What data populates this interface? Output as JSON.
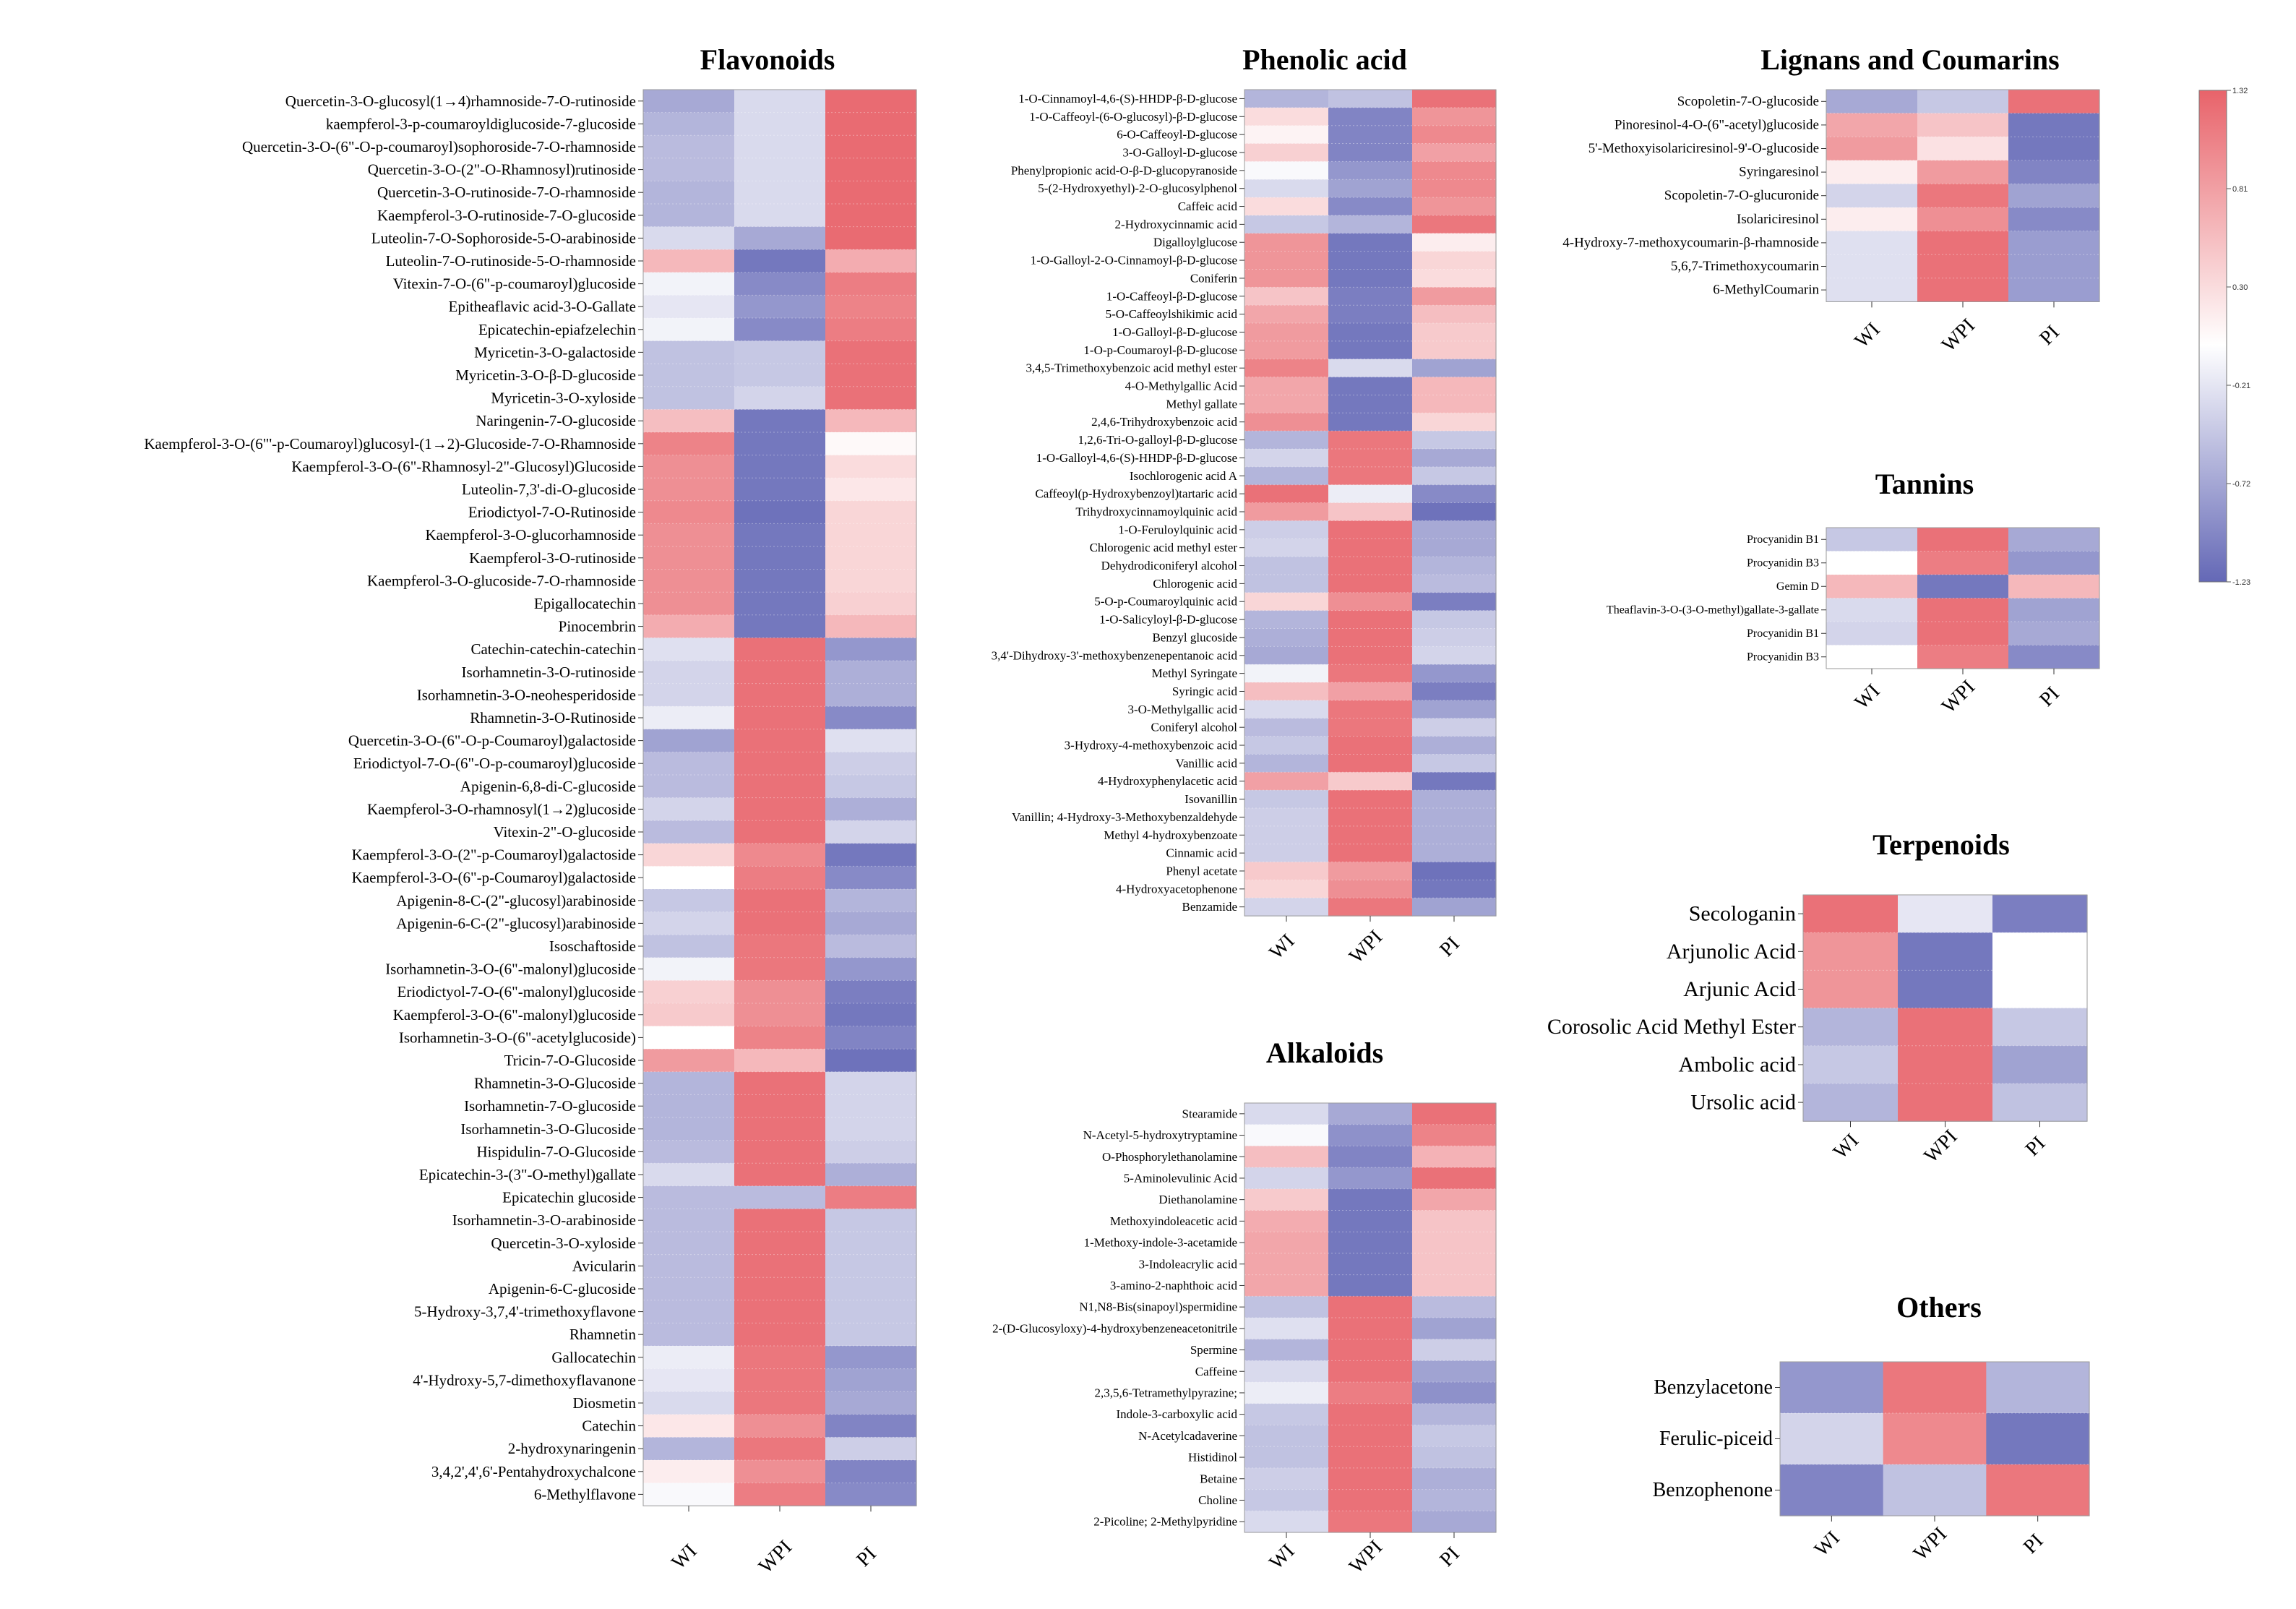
{
  "chart_data": [
    {
      "id": "flavonoids",
      "type": "heatmap",
      "title": "Flavonoids",
      "columns": [
        "WI",
        "WPI",
        "PI"
      ],
      "rows": [
        "Quercetin-3-O-glucosyl(1→4)rhamnoside-7-O-rutinoside",
        "kaempferol-3-p-coumaroyldiglucoside-7-glucoside",
        "Quercetin-3-O-(6\"-O-p-coumaroyl)sophoroside-7-O-rhamnoside",
        "Quercetin-3-O-(2\"-O-Rhamnosyl)rutinoside",
        "Quercetin-3-O-rutinoside-7-O-rhamnoside",
        "Kaempferol-3-O-rutinoside-7-O-glucoside",
        "Luteolin-7-O-Sophoroside-5-O-arabinoside",
        "Luteolin-7-O-rutinoside-5-O-rhamnoside",
        "Vitexin-7-O-(6\"-p-coumaroyl)glucoside",
        "Epitheaflavic acid-3-O-Gallate",
        "Epicatechin-epiafzelechin",
        "Myricetin-3-O-galactoside",
        "Myricetin-3-O-β-D-glucoside",
        "Myricetin-3-O-xyloside",
        "Naringenin-7-O-glucoside",
        "Kaempferol-3-O-(6\"'-p-Coumaroyl)glucosyl-(1→2)-Glucoside-7-O-Rhamnoside",
        "Kaempferol-3-O-(6\"-Rhamnosyl-2\"-Glucosyl)Glucoside",
        "Luteolin-7,3'-di-O-glucoside",
        "Eriodictyol-7-O-Rutinoside",
        "Kaempferol-3-O-glucorhamnoside",
        "Kaempferol-3-O-rutinoside",
        "Kaempferol-3-O-glucoside-7-O-rhamnoside",
        "Epigallocatechin",
        "Pinocembrin",
        "Catechin-catechin-catechin",
        "Isorhamnetin-3-O-rutinoside",
        "Isorhamnetin-3-O-neohesperidoside",
        "Rhamnetin-3-O-Rutinoside",
        "Quercetin-3-O-(6\"-O-p-Coumaroyl)galactoside",
        "Eriodictyol-7-O-(6\"-O-p-coumaroyl)glucoside",
        "Apigenin-6,8-di-C-glucoside",
        "Kaempferol-3-O-rhamnosyl(1→2)glucoside",
        "Vitexin-2\"-O-glucoside",
        "Kaempferol-3-O-(2\"-p-Coumaroyl)galactoside",
        "Kaempferol-3-O-(6\"-p-Coumaroyl)galactoside",
        "Apigenin-8-C-(2\"-glucosyl)arabinoside",
        "Apigenin-6-C-(2\"-glucosyl)arabinoside",
        "Isoschaftoside",
        "Isorhamnetin-3-O-(6\"-malonyl)glucoside",
        "Eriodictyol-7-O-(6\"-malonyl)glucoside",
        "Kaempferol-3-O-(6\"-malonyl)glucoside",
        "Isorhamnetin-3-O-(6\"-acetylglucoside)",
        "Tricin-7-O-Glucoside",
        "Rhamnetin-3-O-Glucoside",
        "Isorhamnetin-7-O-glucoside",
        "Isorhamnetin-3-O-Glucoside",
        "Hispidulin-7-O-Glucoside",
        "Epicatechin-3-(3\"-O-methyl)gallate",
        "Epicatechin glucoside",
        "Isorhamnetin-3-O-arabinoside",
        "Quercetin-3-O-xyloside",
        "Avicularin",
        "Apigenin-6-C-glucoside",
        "5-Hydroxy-3,7,4'-trimethoxyflavone",
        "Rhamnetin",
        "Gallocatechin",
        "4'-Hydroxy-5,7-dimethoxyflavanone",
        "Diosmetin",
        "Catechin",
        "2-hydroxynaringenin",
        "3,4,2',4',6'-Pentahydroxychalcone",
        "6-Methylflavone"
      ],
      "values": [
        [
          -0.7,
          -0.3,
          1.25
        ],
        [
          -0.6,
          -0.3,
          1.25
        ],
        [
          -0.55,
          -0.3,
          1.25
        ],
        [
          -0.55,
          -0.3,
          1.25
        ],
        [
          -0.6,
          -0.3,
          1.25
        ],
        [
          -0.6,
          -0.3,
          1.25
        ],
        [
          -0.3,
          -0.7,
          1.25
        ],
        [
          0.6,
          -1.1,
          0.7
        ],
        [
          -0.1,
          -0.95,
          1.1
        ],
        [
          -0.2,
          -0.85,
          1.05
        ],
        [
          -0.1,
          -0.95,
          1.1
        ],
        [
          -0.5,
          -0.45,
          1.2
        ],
        [
          -0.5,
          -0.45,
          1.2
        ],
        [
          -0.5,
          -0.35,
          1.2
        ],
        [
          0.55,
          -1.1,
          0.6
        ],
        [
          1.05,
          -1.1,
          0.05
        ],
        [
          0.95,
          -1.1,
          0.3
        ],
        [
          0.95,
          -1.1,
          0.2
        ],
        [
          1.0,
          -1.15,
          0.35
        ],
        [
          0.95,
          -1.1,
          0.35
        ],
        [
          0.95,
          -1.1,
          0.35
        ],
        [
          0.95,
          -1.1,
          0.35
        ],
        [
          0.95,
          -1.1,
          0.4
        ],
        [
          0.7,
          -1.1,
          0.6
        ],
        [
          -0.25,
          1.2,
          -0.85
        ],
        [
          -0.35,
          1.2,
          -0.65
        ],
        [
          -0.35,
          1.2,
          -0.65
        ],
        [
          -0.15,
          1.2,
          -0.95
        ],
        [
          -0.75,
          1.2,
          -0.25
        ],
        [
          -0.55,
          1.2,
          -0.4
        ],
        [
          -0.55,
          1.2,
          -0.45
        ],
        [
          -0.35,
          1.2,
          -0.65
        ],
        [
          -0.55,
          1.2,
          -0.35
        ],
        [
          0.35,
          1.0,
          -1.1
        ],
        [
          0.0,
          1.1,
          -0.95
        ],
        [
          -0.45,
          1.2,
          -0.6
        ],
        [
          -0.35,
          1.2,
          -0.7
        ],
        [
          -0.5,
          1.15,
          -0.55
        ],
        [
          -0.1,
          1.15,
          -0.85
        ],
        [
          0.4,
          0.95,
          -1.05
        ],
        [
          0.45,
          0.95,
          -1.1
        ],
        [
          0.0,
          1.05,
          -1.0
        ],
        [
          0.85,
          0.6,
          -1.15
        ],
        [
          -0.6,
          1.2,
          -0.35
        ],
        [
          -0.6,
          1.2,
          -0.35
        ],
        [
          -0.6,
          1.2,
          -0.35
        ],
        [
          -0.55,
          1.2,
          -0.4
        ],
        [
          -0.3,
          1.2,
          -0.65
        ],
        [
          -0.55,
          -0.55,
          1.1
        ],
        [
          -0.55,
          1.2,
          -0.45
        ],
        [
          -0.55,
          1.2,
          -0.45
        ],
        [
          -0.55,
          1.2,
          -0.45
        ],
        [
          -0.55,
          1.2,
          -0.45
        ],
        [
          -0.55,
          1.2,
          -0.45
        ],
        [
          -0.55,
          1.2,
          -0.45
        ],
        [
          -0.15,
          1.15,
          -0.85
        ],
        [
          -0.2,
          1.15,
          -0.75
        ],
        [
          -0.3,
          1.15,
          -0.7
        ],
        [
          0.2,
          0.95,
          -1.0
        ],
        [
          -0.6,
          1.15,
          -0.4
        ],
        [
          0.15,
          0.95,
          -1.0
        ],
        [
          -0.05,
          1.1,
          -0.95
        ]
      ]
    },
    {
      "id": "phenolic",
      "type": "heatmap",
      "title": "Phenolic acid",
      "columns": [
        "WI",
        "WPI",
        "PI"
      ],
      "rows": [
        "1-O-Cinnamoyl-4,6-(S)-HHDP-β-D-glucose",
        "1-O-Caffeoyl-(6-O-glucosyl)-β-D-glucose",
        "6-O-Caffeoyl-D-glucose",
        "3-O-Galloyl-D-glucose",
        "Phenylpropionic acid-O-β-D-glucopyranoside",
        "5-(2-Hydroxyethyl)-2-O-glucosylphenol",
        "Caffeic acid",
        "2-Hydroxycinnamic acid",
        "Digalloylglucose",
        "1-O-Galloyl-2-O-Cinnamoyl-β-D-glucose",
        "Coniferin",
        "1-O-Caffeoyl-β-D-glucose",
        "5-O-Caffeoylshikimic acid",
        "1-O-Galloyl-β-D-glucose",
        "1-O-p-Coumaroyl-β-D-glucose",
        "3,4,5-Trimethoxybenzoic acid methyl ester",
        "4-O-Methylgallic Acid",
        "Methyl gallate",
        "2,4,6-Trihydroxybenzoic acid",
        "1,2,6-Tri-O-galloyl-β-D-glucose",
        "1-O-Galloyl-4,6-(S)-HHDP-β-D-glucose",
        "Isochlorogenic acid A",
        "Caffeoyl(p-Hydroxybenzoyl)tartaric acid",
        "Trihydroxycinnamoylquinic acid",
        "1-O-Feruloylquinic acid",
        "Chlorogenic acid methyl ester",
        "Dehydrodiconiferyl alcohol",
        "Chlorogenic acid",
        "5-O-p-Coumaroylquinic acid",
        "1-O-Salicyloyl-β-D-glucose",
        "Benzyl glucoside",
        "3,4'-Dihydroxy-3'-methoxybenzenepentanoic acid",
        "Methyl Syringate",
        "Syringic acid",
        "3-O-Methylgallic acid",
        "Coniferyl alcohol",
        "3-Hydroxy-4-methoxybenzoic acid",
        "Vanillic acid",
        "4-Hydroxyphenylacetic acid",
        "Isovanillin",
        "Vanillin; 4-Hydroxy-3-Methoxybenzaldehyde",
        "Methyl 4-hydroxybenzoate",
        "Cinnamic acid",
        "Phenyl acetate",
        "4-Hydroxyacetophenone",
        "Benzamide"
      ],
      "values": [
        [
          -0.6,
          -0.5,
          1.2
        ],
        [
          0.3,
          -1.0,
          0.9
        ],
        [
          0.1,
          -1.0,
          1.0
        ],
        [
          0.4,
          -1.0,
          0.8
        ],
        [
          -0.05,
          -0.85,
          1.0
        ],
        [
          -0.3,
          -0.75,
          1.0
        ],
        [
          0.3,
          -0.95,
          0.9
        ],
        [
          -0.45,
          -0.6,
          1.15
        ],
        [
          0.9,
          -1.1,
          0.15
        ],
        [
          0.9,
          -1.1,
          0.35
        ],
        [
          0.9,
          -1.1,
          0.3
        ],
        [
          0.5,
          -1.05,
          0.85
        ],
        [
          0.75,
          -1.05,
          0.55
        ],
        [
          0.85,
          -1.1,
          0.45
        ],
        [
          0.85,
          -1.1,
          0.45
        ],
        [
          1.05,
          -0.3,
          -0.75
        ],
        [
          0.75,
          -1.1,
          0.6
        ],
        [
          0.75,
          -1.1,
          0.6
        ],
        [
          0.95,
          -1.1,
          0.35
        ],
        [
          -0.6,
          1.15,
          -0.45
        ],
        [
          -0.35,
          1.15,
          -0.7
        ],
        [
          -0.6,
          1.15,
          -0.45
        ],
        [
          1.2,
          -0.15,
          -0.95
        ],
        [
          0.85,
          0.5,
          -1.15
        ],
        [
          -0.4,
          1.2,
          -0.7
        ],
        [
          -0.35,
          1.2,
          -0.7
        ],
        [
          -0.5,
          1.2,
          -0.6
        ],
        [
          -0.5,
          1.2,
          -0.55
        ],
        [
          0.35,
          0.95,
          -1.05
        ],
        [
          -0.6,
          1.2,
          -0.45
        ],
        [
          -0.65,
          1.2,
          -0.4
        ],
        [
          -0.7,
          1.2,
          -0.35
        ],
        [
          -0.1,
          1.15,
          -0.85
        ],
        [
          0.55,
          0.8,
          -1.05
        ],
        [
          -0.3,
          1.15,
          -0.75
        ],
        [
          -0.55,
          1.15,
          -0.4
        ],
        [
          -0.45,
          1.2,
          -0.65
        ],
        [
          -0.6,
          1.2,
          -0.45
        ],
        [
          0.8,
          0.45,
          -1.1
        ],
        [
          -0.45,
          1.2,
          -0.65
        ],
        [
          -0.4,
          1.2,
          -0.65
        ],
        [
          -0.4,
          1.2,
          -0.65
        ],
        [
          -0.4,
          1.2,
          -0.65
        ],
        [
          0.45,
          0.85,
          -1.15
        ],
        [
          0.35,
          0.95,
          -1.1
        ],
        [
          -0.35,
          1.15,
          -0.75
        ]
      ]
    },
    {
      "id": "lignans",
      "type": "heatmap",
      "title": "Lignans and Coumarins",
      "columns": [
        "WI",
        "WPI",
        "PI"
      ],
      "rows": [
        "Scopoletin-7-O-glucoside",
        "Pinoresinol-4-O-(6\"-acetyl)glucoside",
        "5'-Methoxyisolariciresinol-9'-O-glucoside",
        "Syringaresinol",
        "Scopoletin-7-O-glucuronide",
        "Isolariciresinol",
        "4-Hydroxy-7-methoxycoumarin-β-rhamnoside",
        "5,6,7-Trimethoxycoumarin",
        "6-MethylCoumarin"
      ],
      "values": [
        [
          -0.7,
          -0.45,
          1.2
        ],
        [
          0.75,
          0.5,
          -1.1
        ],
        [
          0.85,
          0.25,
          -1.1
        ],
        [
          0.15,
          0.85,
          -1.0
        ],
        [
          -0.35,
          1.15,
          -0.75
        ],
        [
          0.15,
          0.95,
          -0.95
        ],
        [
          -0.25,
          1.2,
          -0.8
        ],
        [
          -0.25,
          1.2,
          -0.8
        ],
        [
          -0.25,
          1.2,
          -0.8
        ]
      ]
    },
    {
      "id": "tannins",
      "type": "heatmap",
      "title": "Tannins",
      "columns": [
        "WI",
        "WPI",
        "PI"
      ],
      "rows": [
        "Procyanidin B1",
        "Procyanidin B3",
        "Gemin D",
        "Theaflavin-3-O-(3-O-methyl)gallate-3-gallate",
        "Procyanidin B1",
        "Procyanidin B3"
      ],
      "values": [
        [
          -0.45,
          1.2,
          -0.7
        ],
        [
          0.0,
          1.1,
          -0.85
        ],
        [
          0.6,
          -1.1,
          0.6
        ],
        [
          -0.3,
          1.2,
          -0.75
        ],
        [
          -0.35,
          1.2,
          -0.7
        ],
        [
          0.0,
          1.1,
          -0.95
        ]
      ]
    },
    {
      "id": "terpenoids",
      "type": "heatmap",
      "title": "Terpenoids",
      "columns": [
        "WI",
        "WPI",
        "PI"
      ],
      "rows": [
        "Secologanin",
        "Arjunolic Acid",
        "Arjunic Acid",
        "Corosolic Acid Methyl Ester",
        "Ambolic acid",
        "Ursolic acid"
      ],
      "values": [
        [
          1.2,
          -0.2,
          -1.05
        ],
        [
          0.9,
          -1.1,
          0.0
        ],
        [
          0.9,
          -1.1,
          0.0
        ],
        [
          -0.6,
          1.2,
          -0.45
        ],
        [
          -0.45,
          1.2,
          -0.75
        ],
        [
          -0.6,
          1.2,
          -0.5
        ]
      ]
    },
    {
      "id": "alkaloids",
      "type": "heatmap",
      "title": "Alkaloids",
      "columns": [
        "WI",
        "WPI",
        "PI"
      ],
      "rows": [
        "Stearamide",
        "N-Acetyl-5-hydroxytryptamine",
        "O-Phosphorylethanolamine",
        "5-Aminolevulinic Acid",
        "Diethanolamine",
        "Methoxyindoleacetic acid",
        "1-Methoxy-indole-3-acetamide",
        "3-Indoleacrylic acid",
        "3-amino-2-naphthoic acid",
        "N1,N8-Bis(sinapoyl)spermidine",
        "2-(D-Glucosyloxy)-4-hydroxybenzeneacetonitrile",
        "Spermine",
        "Caffeine",
        "2,3,5,6-Tetramethylpyrazine;",
        "Indole-3-carboxylic acid",
        "N-Acetylcadaverine",
        "Histidinol",
        "Betaine",
        "Choline",
        "2-Picoline; 2-Methylpyridine"
      ],
      "values": [
        [
          -0.3,
          -0.7,
          1.2
        ],
        [
          -0.05,
          -0.9,
          1.05
        ],
        [
          0.55,
          -1.0,
          0.65
        ],
        [
          -0.35,
          -0.85,
          1.2
        ],
        [
          0.45,
          -1.1,
          0.75
        ],
        [
          0.7,
          -1.1,
          0.5
        ],
        [
          0.75,
          -1.1,
          0.5
        ],
        [
          0.75,
          -1.1,
          0.5
        ],
        [
          0.75,
          -1.1,
          0.5
        ],
        [
          -0.5,
          1.2,
          -0.55
        ],
        [
          -0.25,
          1.2,
          -0.75
        ],
        [
          -0.6,
          1.2,
          -0.4
        ],
        [
          -0.3,
          1.2,
          -0.75
        ],
        [
          -0.15,
          1.1,
          -0.9
        ],
        [
          -0.45,
          1.2,
          -0.6
        ],
        [
          -0.5,
          1.2,
          -0.45
        ],
        [
          -0.5,
          1.2,
          -0.5
        ],
        [
          -0.4,
          1.2,
          -0.65
        ],
        [
          -0.45,
          1.2,
          -0.6
        ],
        [
          -0.3,
          1.15,
          -0.7
        ]
      ]
    },
    {
      "id": "others",
      "type": "heatmap",
      "title": "Others",
      "columns": [
        "WI",
        "WPI",
        "PI"
      ],
      "rows": [
        "Benzylacetone",
        "Ferulic-piceid",
        "Benzophenone"
      ],
      "values": [
        [
          -0.85,
          1.15,
          -0.6
        ],
        [
          -0.35,
          1.0,
          -1.1
        ],
        [
          -1.0,
          -0.5,
          1.15
        ]
      ]
    }
  ],
  "colorbar": {
    "min": -1.23,
    "max": 1.32,
    "tick_labels": [
      "1.32",
      "0.81",
      "0.30",
      "-0.21",
      "-0.72",
      "-1.23"
    ],
    "high_color": "#e8636a",
    "mid_color": "#ffffff",
    "low_color": "#6468b6"
  }
}
